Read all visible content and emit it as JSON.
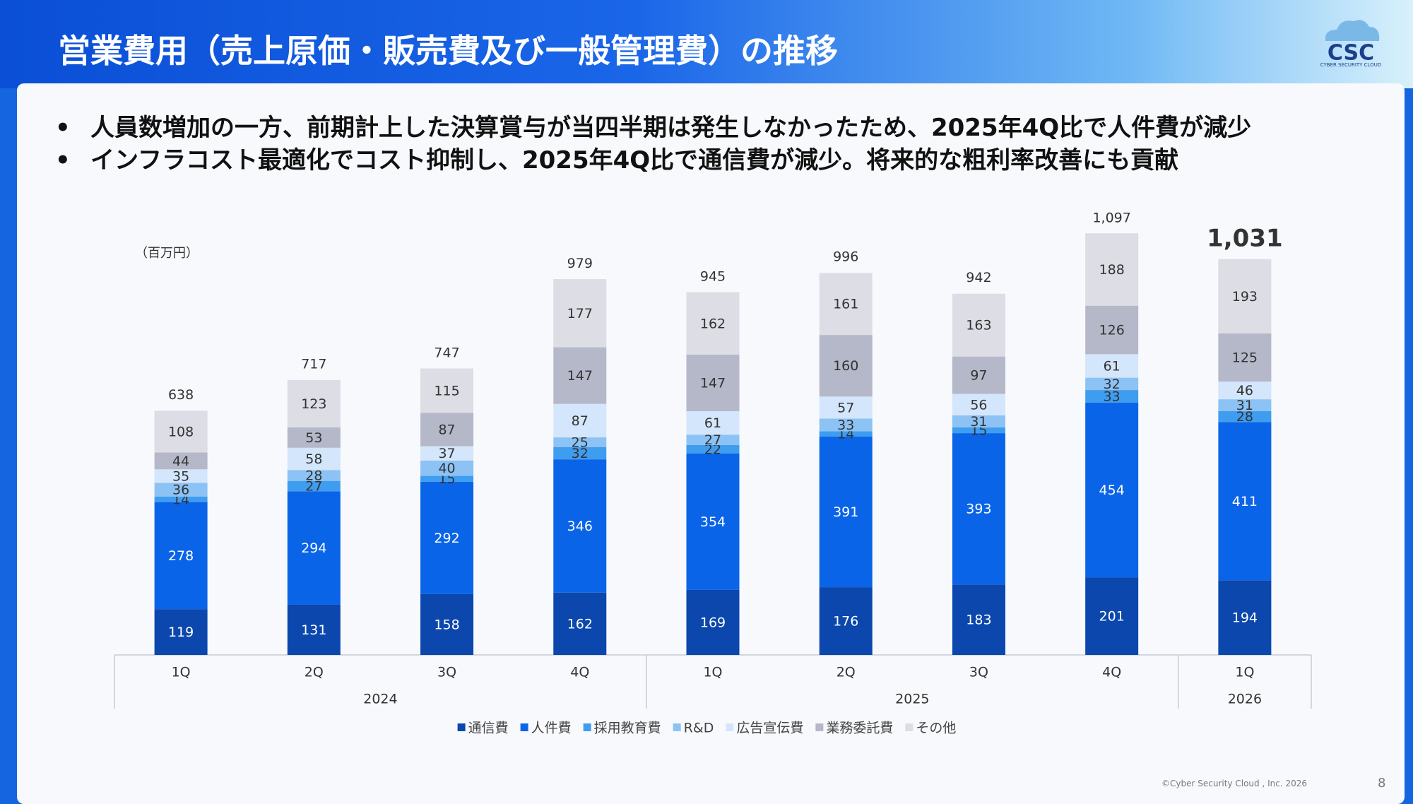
{
  "header": {
    "title": "営業費用（売上原価・販売費及び一般管理費）の推移",
    "logo": {
      "mark": "CSC",
      "text": "CYBER SECURITY CLOUD"
    }
  },
  "bullets": [
    "人員数増加の一方、前期計上した決算賞与が当四半期は発生しなかったため、2025年4Q比で人件費が減少",
    "インフラコスト最適化でコスト抑制し、2025年4Q比で通信費が減少。将来的な粗利率改善にも貢献"
  ],
  "chart_data": {
    "type": "stacked_bar",
    "unit_label": "（百万円）",
    "groups": [
      {
        "name": "2024",
        "categories": [
          "1Q",
          "2Q",
          "3Q",
          "4Q"
        ]
      },
      {
        "name": "2025",
        "categories": [
          "1Q",
          "2Q",
          "3Q",
          "4Q"
        ]
      },
      {
        "name": "2026",
        "categories": [
          "1Q"
        ]
      }
    ],
    "series": [
      {
        "name": "通信費",
        "color": "#0b47ad",
        "values": [
          119,
          131,
          158,
          162,
          169,
          176,
          183,
          201,
          194
        ]
      },
      {
        "name": "人件費",
        "color": "#0a64e8",
        "values": [
          278,
          294,
          292,
          346,
          354,
          391,
          393,
          454,
          411
        ]
      },
      {
        "name": "採用教育費",
        "color": "#3f9df0",
        "values": [
          14,
          27,
          15,
          32,
          22,
          14,
          15,
          33,
          28
        ]
      },
      {
        "name": "R&D",
        "color": "#8cc2f4",
        "values": [
          36,
          28,
          40,
          25,
          27,
          33,
          31,
          32,
          31
        ]
      },
      {
        "name": "広告宣伝費",
        "color": "#d3e6fb",
        "values": [
          35,
          58,
          37,
          87,
          61,
          57,
          56,
          61,
          46
        ]
      },
      {
        "name": "業務委託費",
        "color": "#b5b8c9",
        "values": [
          44,
          53,
          87,
          147,
          147,
          160,
          97,
          126,
          125
        ]
      },
      {
        "name": "その他",
        "color": "#dcdde5",
        "values": [
          108,
          123,
          115,
          177,
          162,
          161,
          163,
          188,
          193
        ]
      }
    ],
    "totals": {
      "values": [
        638,
        717,
        747,
        979,
        945,
        996,
        942,
        1097,
        1031
      ],
      "value_labels": [
        "638",
        "717",
        "747",
        "979",
        "945",
        "996",
        "942",
        "1,097",
        "1,031"
      ]
    },
    "legend": "bottom"
  },
  "footer": {
    "copyright": "©Cyber Security Cloud , Inc. 2026",
    "page": "8"
  }
}
